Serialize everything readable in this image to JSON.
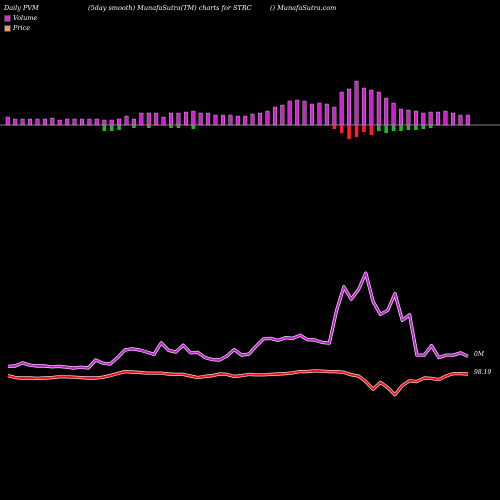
{
  "header": {
    "left": "Daily PVM",
    "center_left": "(5day smooth) MunafaSutra(TM) charts for STRC",
    "right": "() MunafaSutra.com"
  },
  "legend": {
    "volume_label": "Volume",
    "price_label": "Price",
    "volume_color": "#cc33cc",
    "price_color": "#ff6600"
  },
  "chart_data": {
    "type": "line",
    "title": "",
    "xlabel": "",
    "ylabel": "",
    "series": [
      {
        "name": "Volume",
        "color": "#cc33cc",
        "values": [
          366.4,
          366.0,
          362.8,
          365.2,
          366.0,
          366.0,
          366.8,
          366.4,
          367.2,
          368.0,
          367.2,
          368.0,
          360.0,
          363.2,
          364.0,
          357.6,
          350.0,
          348.8,
          350.0,
          352.0,
          354.4,
          342.8,
          350.4,
          352.0,
          345.2,
          352.8,
          352.4,
          357.6,
          359.6,
          360.0,
          356.0,
          349.6,
          355.2,
          354.0,
          346.0,
          338.8,
          338.4,
          340.4,
          337.6,
          338.4,
          335.2,
          339.6,
          340.0,
          342.4,
          343.2,
          310.4,
          286.8,
          299.2,
          289.6,
          273.2,
          301.6,
          314.4,
          310.4,
          293.6,
          320.4,
          314.8,
          355.2,
          355.2,
          345.6,
          357.6,
          355.2,
          355.2,
          352.8,
          356.4
        ]
      },
      {
        "name": "Price",
        "color": "#ff3333",
        "values": [
          375.6,
          377.6,
          378.0,
          378.0,
          378.4,
          378.0,
          377.6,
          376.8,
          376.8,
          377.2,
          377.6,
          378.0,
          378.0,
          377.2,
          375.6,
          373.6,
          371.6,
          372.0,
          372.4,
          373.2,
          373.2,
          373.2,
          374.0,
          374.4,
          374.4,
          376.0,
          377.6,
          376.4,
          375.6,
          374.0,
          374.4,
          376.4,
          375.6,
          374.4,
          374.8,
          374.8,
          374.4,
          374.0,
          373.6,
          372.8,
          371.6,
          371.6,
          370.8,
          371.2,
          371.6,
          371.6,
          372.4,
          374.8,
          376.0,
          381.6,
          389.2,
          382.4,
          387.6,
          394.8,
          385.6,
          380.8,
          381.6,
          378.0,
          378.4,
          379.6,
          376.0,
          373.6,
          373.6,
          374.0
        ]
      }
    ],
    "volume_bars": [
      {
        "height": 8,
        "dir": "up"
      },
      {
        "height": 6,
        "dir": "up"
      },
      {
        "height": 6,
        "dir": "up"
      },
      {
        "height": 6,
        "dir": "up"
      },
      {
        "height": 6,
        "dir": "up"
      },
      {
        "height": 6,
        "dir": "up"
      },
      {
        "height": 7,
        "dir": "up"
      },
      {
        "height": 5,
        "dir": "up"
      },
      {
        "height": 6,
        "dir": "up"
      },
      {
        "height": 6,
        "dir": "up"
      },
      {
        "height": 6,
        "dir": "up"
      },
      {
        "height": 6,
        "dir": "up"
      },
      {
        "height": 6,
        "dir": "up"
      },
      {
        "height": 5,
        "dir": "up"
      },
      {
        "height": 5,
        "dir": "down"
      },
      {
        "height": 6,
        "dir": "up"
      },
      {
        "height": 9,
        "dir": "up"
      },
      {
        "height": 6,
        "dir": "down"
      },
      {
        "height": 12,
        "dir": "up"
      },
      {
        "height": 12,
        "dir": "up"
      },
      {
        "height": 12,
        "dir": "up"
      },
      {
        "height": 8,
        "dir": "up"
      },
      {
        "height": 12,
        "dir": "up"
      },
      {
        "height": 12,
        "dir": "up"
      },
      {
        "height": 13,
        "dir": "up"
      },
      {
        "height": 14,
        "dir": "up"
      },
      {
        "height": 12,
        "dir": "up"
      },
      {
        "height": 12,
        "dir": "up"
      },
      {
        "height": 10,
        "dir": "up"
      },
      {
        "height": 10,
        "dir": "up"
      },
      {
        "height": 10,
        "dir": "up"
      },
      {
        "height": 9,
        "dir": "up"
      },
      {
        "height": 9,
        "dir": "up"
      },
      {
        "height": 11,
        "dir": "up"
      },
      {
        "height": 12,
        "dir": "up"
      },
      {
        "height": 14,
        "dir": "up"
      },
      {
        "height": 18,
        "dir": "up"
      },
      {
        "height": 20,
        "dir": "up"
      },
      {
        "height": 24,
        "dir": "up"
      },
      {
        "height": 25,
        "dir": "up"
      },
      {
        "height": 24,
        "dir": "up"
      },
      {
        "height": 21,
        "dir": "up"
      },
      {
        "height": 22,
        "dir": "up"
      },
      {
        "height": 21,
        "dir": "up"
      },
      {
        "height": 18,
        "dir": "up"
      },
      {
        "height": 33,
        "dir": "up"
      },
      {
        "height": 36,
        "dir": "up"
      },
      {
        "height": 44,
        "dir": "up"
      },
      {
        "height": 37,
        "dir": "up"
      },
      {
        "height": 35,
        "dir": "up"
      },
      {
        "height": 33,
        "dir": "up"
      },
      {
        "height": 27,
        "dir": "up"
      },
      {
        "height": 22,
        "dir": "up"
      },
      {
        "height": 16,
        "dir": "up"
      },
      {
        "height": 15,
        "dir": "up"
      },
      {
        "height": 14,
        "dir": "up"
      },
      {
        "height": 12,
        "dir": "up"
      },
      {
        "height": 13,
        "dir": "up"
      },
      {
        "height": 13,
        "dir": "up"
      },
      {
        "height": 14,
        "dir": "up"
      },
      {
        "height": 12,
        "dir": "up"
      },
      {
        "height": 10,
        "dir": "up"
      },
      {
        "height": 10,
        "dir": "up"
      }
    ],
    "volume_below": [
      {
        "i": 13,
        "h": 6,
        "color": "#22bb22"
      },
      {
        "i": 14,
        "h": 6,
        "color": "#22bb22"
      },
      {
        "i": 15,
        "h": 5,
        "color": "#22bb22"
      },
      {
        "i": 17,
        "h": 3,
        "color": "#22bb22"
      },
      {
        "i": 19,
        "h": 3,
        "color": "#22bb22"
      },
      {
        "i": 22,
        "h": 3,
        "color": "#22bb22"
      },
      {
        "i": 23,
        "h": 3,
        "color": "#22bb22"
      },
      {
        "i": 25,
        "h": 4,
        "color": "#22bb22"
      },
      {
        "i": 44,
        "h": 4,
        "color": "#ff2222"
      },
      {
        "i": 45,
        "h": 8,
        "color": "#ff2222"
      },
      {
        "i": 46,
        "h": 14,
        "color": "#ff2222"
      },
      {
        "i": 47,
        "h": 12,
        "color": "#ff2222"
      },
      {
        "i": 48,
        "h": 7,
        "color": "#ff2222"
      },
      {
        "i": 49,
        "h": 10,
        "color": "#ff2222"
      },
      {
        "i": 50,
        "h": 6,
        "color": "#22bb22"
      },
      {
        "i": 51,
        "h": 8,
        "color": "#22bb22"
      },
      {
        "i": 52,
        "h": 6,
        "color": "#22bb22"
      },
      {
        "i": 53,
        "h": 6,
        "color": "#22bb22"
      },
      {
        "i": 54,
        "h": 5,
        "color": "#22bb22"
      },
      {
        "i": 55,
        "h": 5,
        "color": "#22bb22"
      },
      {
        "i": 56,
        "h": 4,
        "color": "#22bb22"
      },
      {
        "i": 57,
        "h": 3,
        "color": "#22bb22"
      }
    ],
    "value_labels": {
      "volume_end": "0M",
      "price_end": "98.19"
    },
    "axis_line_color": "#ffffff"
  }
}
